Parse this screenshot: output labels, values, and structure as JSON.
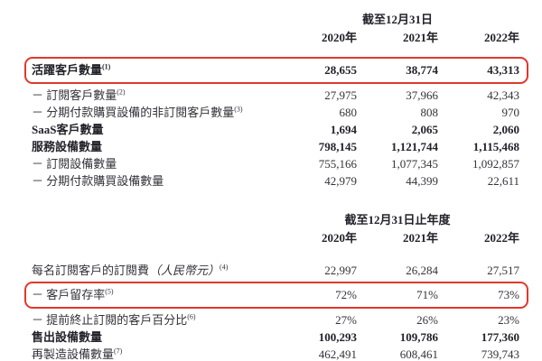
{
  "colors": {
    "background": "#ffffff",
    "text": "#33333a",
    "bold_text": "#22222a",
    "highlight_border": "#e0382c"
  },
  "table1": {
    "period_label": "截至12月31日",
    "years": [
      "2020年",
      "2021年",
      "2022年"
    ],
    "rows": [
      {
        "label": "活躍客戶數量",
        "sup": "(1)",
        "values": [
          "28,655",
          "38,774",
          "43,313"
        ]
      },
      {
        "label": "－ 訂閱客戶數量",
        "sup": "(2)",
        "values": [
          "27,975",
          "37,966",
          "42,343"
        ]
      },
      {
        "label": "－ 分期付款購買設備的非訂閱客戶數量",
        "sup": "(3)",
        "values": [
          "680",
          "808",
          "970"
        ]
      },
      {
        "label": "SaaS客戶數量",
        "sup": "",
        "values": [
          "1,694",
          "2,065",
          "2,060"
        ]
      },
      {
        "label": "服務設備數量",
        "sup": "",
        "values": [
          "798,145",
          "1,121,744",
          "1,115,468"
        ]
      },
      {
        "label": "－ 訂閱設備數量",
        "sup": "",
        "values": [
          "755,166",
          "1,077,345",
          "1,092,857"
        ]
      },
      {
        "label": "－ 分期付款購買設備數量",
        "sup": "",
        "values": [
          "42,979",
          "44,399",
          "22,611"
        ]
      }
    ]
  },
  "table2": {
    "period_label": "截至12月31日止年度",
    "years": [
      "2020年",
      "2021年",
      "2022年"
    ],
    "rows": [
      {
        "label": "每名訂閱客戶的訂閱費",
        "label_italic": "（人民幣元）",
        "sup": "(4)",
        "values": [
          "22,997",
          "26,284",
          "27,517"
        ]
      },
      {
        "label": "－ 客戶留存率",
        "sup": "(5)",
        "values": [
          "72%",
          "71%",
          "73%"
        ]
      },
      {
        "label": "－ 提前終止訂閱的客戶百分比",
        "sup": "(6)",
        "values": [
          "27%",
          "26%",
          "23%"
        ]
      },
      {
        "label": "售出設備數量",
        "sup": "",
        "values": [
          "100,293",
          "109,786",
          "177,360"
        ]
      },
      {
        "label": "再製造設備數量",
        "sup": "(7)",
        "values": [
          "462,491",
          "608,461",
          "739,743"
        ]
      }
    ]
  }
}
